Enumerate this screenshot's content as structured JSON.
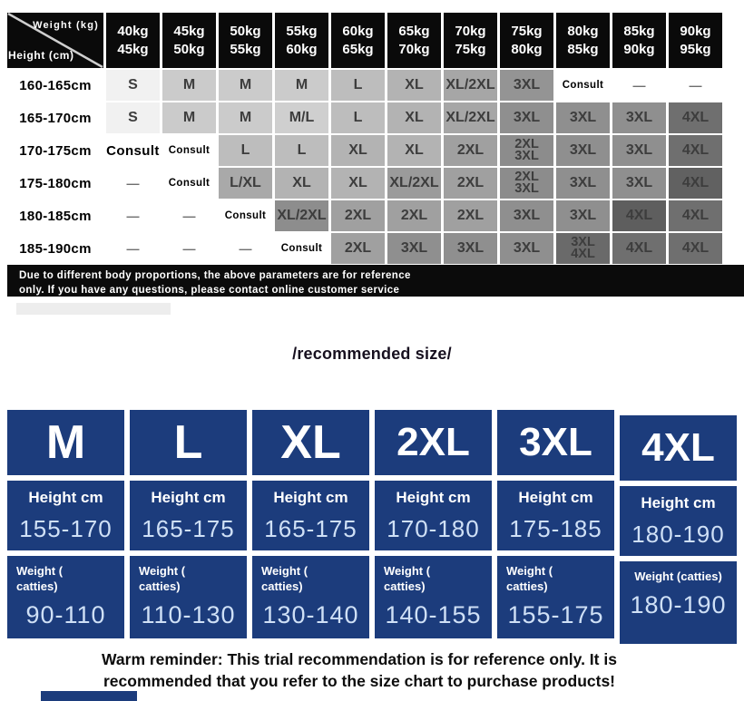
{
  "size_table": {
    "corner": {
      "top": "Weight (kg)",
      "bottom": "Height (cm)"
    },
    "weight_headers": [
      [
        "40kg",
        "45kg"
      ],
      [
        "45kg",
        "50kg"
      ],
      [
        "50kg",
        "55kg"
      ],
      [
        "55kg",
        "60kg"
      ],
      [
        "60kg",
        "65kg"
      ],
      [
        "65kg",
        "70kg"
      ],
      [
        "70kg",
        "75kg"
      ],
      [
        "75kg",
        "80kg"
      ],
      [
        "80kg",
        "85kg"
      ],
      [
        "85kg",
        "90kg"
      ],
      [
        "90kg",
        "95kg"
      ]
    ],
    "rows": [
      {
        "height": "160-165cm",
        "cells": [
          {
            "t": "S",
            "bg": "#f1f1f1"
          },
          {
            "t": "M",
            "bg": "#cbcbcb"
          },
          {
            "t": "M",
            "bg": "#cbcbcb"
          },
          {
            "t": "M",
            "bg": "#cbcbcb"
          },
          {
            "t": "L",
            "bg": "#bdbdbd"
          },
          {
            "t": "XL",
            "bg": "#b3b3b3"
          },
          {
            "t": "XL/2XL",
            "bg": "#a6a6a6"
          },
          {
            "t": "3XL",
            "bg": "#949494"
          },
          {
            "t": "Consult",
            "bg": "#ffffff",
            "cls": "consult"
          },
          {
            "t": "—",
            "bg": "#ffffff",
            "cls": "dash"
          },
          {
            "t": "—",
            "bg": "#ffffff",
            "cls": "dash"
          }
        ]
      },
      {
        "height": "165-170cm",
        "cells": [
          {
            "t": "S",
            "bg": "#f1f1f1"
          },
          {
            "t": "M",
            "bg": "#cbcbcb"
          },
          {
            "t": "M",
            "bg": "#cbcbcb"
          },
          {
            "t": "M/L",
            "bg": "#cfcfcf"
          },
          {
            "t": "L",
            "bg": "#bdbdbd"
          },
          {
            "t": "XL",
            "bg": "#b3b3b3"
          },
          {
            "t": "XL/2XL",
            "bg": "#a6a6a6"
          },
          {
            "t": "3XL",
            "bg": "#8f8f8f"
          },
          {
            "t": "3XL",
            "bg": "#8f8f8f"
          },
          {
            "t": "3XL",
            "bg": "#8f8f8f"
          },
          {
            "t": "4XL",
            "bg": "#6f6f6f"
          }
        ]
      },
      {
        "height": "170-175cm",
        "cells": [
          {
            "t": "Consult",
            "bg": "#ffffff",
            "cls": "consult consult-big"
          },
          {
            "t": "Consult",
            "bg": "#ffffff",
            "cls": "consult"
          },
          {
            "t": "L",
            "bg": "#bdbdbd"
          },
          {
            "t": "L",
            "bg": "#bdbdbd"
          },
          {
            "t": "XL",
            "bg": "#b3b3b3"
          },
          {
            "t": "XL",
            "bg": "#b3b3b3"
          },
          {
            "t": "2XL",
            "bg": "#a0a0a0"
          },
          {
            "t": "2XL|3XL",
            "bg": "#8c8c8c",
            "stack": true
          },
          {
            "t": "3XL",
            "bg": "#8f8f8f"
          },
          {
            "t": "3XL",
            "bg": "#8f8f8f"
          },
          {
            "t": "4XL",
            "bg": "#6f6f6f"
          }
        ]
      },
      {
        "height": "175-180cm",
        "cells": [
          {
            "t": "—",
            "bg": "#ffffff",
            "cls": "dash"
          },
          {
            "t": "Consult",
            "bg": "#ffffff",
            "cls": "consult"
          },
          {
            "t": "L/XL",
            "bg": "#a9a9a9"
          },
          {
            "t": "XL",
            "bg": "#b3b3b3"
          },
          {
            "t": "XL",
            "bg": "#b3b3b3"
          },
          {
            "t": "XL/2XL",
            "bg": "#9b9b9b"
          },
          {
            "t": "2XL",
            "bg": "#a0a0a0"
          },
          {
            "t": "2XL|3XL",
            "bg": "#8c8c8c",
            "stack": true
          },
          {
            "t": "3XL",
            "bg": "#8f8f8f"
          },
          {
            "t": "3XL",
            "bg": "#8f8f8f"
          },
          {
            "t": "4XL",
            "bg": "#616161"
          }
        ]
      },
      {
        "height": "180-185cm",
        "cells": [
          {
            "t": "—",
            "bg": "#ffffff",
            "cls": "dash"
          },
          {
            "t": "—",
            "bg": "#ffffff",
            "cls": "dash"
          },
          {
            "t": "Consult",
            "bg": "#ffffff",
            "cls": "consult"
          },
          {
            "t": "XL/2XL",
            "bg": "#8d8d8d"
          },
          {
            "t": "2XL",
            "bg": "#a0a0a0"
          },
          {
            "t": "2XL",
            "bg": "#a0a0a0"
          },
          {
            "t": "2XL",
            "bg": "#a0a0a0"
          },
          {
            "t": "3XL",
            "bg": "#8f8f8f"
          },
          {
            "t": "3XL",
            "bg": "#8f8f8f"
          },
          {
            "t": "4XL",
            "bg": "#5e5e5e"
          },
          {
            "t": "4XL",
            "bg": "#6f6f6f"
          }
        ]
      },
      {
        "height": "185-190cm",
        "cells": [
          {
            "t": "—",
            "bg": "#ffffff",
            "cls": "dash"
          },
          {
            "t": "—",
            "bg": "#ffffff",
            "cls": "dash"
          },
          {
            "t": "—",
            "bg": "#ffffff",
            "cls": "dash"
          },
          {
            "t": "Consult",
            "bg": "#ffffff",
            "cls": "consult"
          },
          {
            "t": "2XL",
            "bg": "#a0a0a0"
          },
          {
            "t": "3XL",
            "bg": "#8f8f8f"
          },
          {
            "t": "3XL",
            "bg": "#8f8f8f"
          },
          {
            "t": "3XL",
            "bg": "#8f8f8f"
          },
          {
            "t": "3XL|4XL",
            "bg": "#6a6a6a",
            "stack": true
          },
          {
            "t": "4XL",
            "bg": "#6f6f6f"
          },
          {
            "t": "4XL",
            "bg": "#6f6f6f"
          }
        ]
      }
    ],
    "disclaimer_line1": "Due to different body proportions, the above parameters are for reference",
    "disclaimer_line2": "only. If you have any questions, please contact online customer service"
  },
  "recommended": {
    "title": "/recommended size/",
    "height_label": "Height cm",
    "weight_label_lines": [
      "Weight (",
      "catties)"
    ],
    "weight_label_single": "Weight (catties)",
    "columns": [
      {
        "size": "M",
        "height": "155-170",
        "weight": "90-110"
      },
      {
        "size": "L",
        "height": "165-175",
        "weight": "110-130"
      },
      {
        "size": "XL",
        "height": "165-175",
        "weight": "130-140"
      },
      {
        "size": "2XL",
        "height": "170-180",
        "weight": "140-155"
      },
      {
        "size": "3XL",
        "height": "175-185",
        "weight": "155-175"
      },
      {
        "size": "4XL",
        "height": "180-190",
        "weight": "180-190",
        "single_line_weight_label": true,
        "offset": true
      }
    ]
  },
  "footer": {
    "line1": "Warm reminder: This trial recommendation is for reference only. It is",
    "line2": "recommended that you refer to the size chart to purchase products!"
  },
  "colors": {
    "navy": "#1c3c7c",
    "light_blue_text": "#cfe0f6",
    "header_black": "#0a0a0a"
  }
}
